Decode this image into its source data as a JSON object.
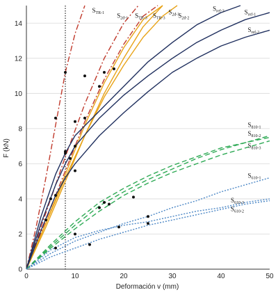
{
  "chart_data": {
    "type": "line",
    "xlabel": "Deformación v (mm)",
    "ylabel": "F (kN)",
    "xlim": [
      0,
      50
    ],
    "ylim": [
      0,
      15
    ],
    "xticks": [
      "0",
      "10",
      "20",
      "30",
      "40",
      "50"
    ],
    "yticks": [
      "0",
      "2",
      "4",
      "6",
      "8",
      "10",
      "12",
      "14"
    ],
    "grid": "horizontal",
    "reference_line": {
      "x": 8,
      "style": "dotted"
    },
    "series": [
      {
        "name": "S_TR-1",
        "color": "#c0392b",
        "dash": "8,3,2,3",
        "x": [
          0,
          2,
          4,
          6,
          8,
          10,
          12
        ],
        "y": [
          0,
          2.4,
          5.2,
          8.2,
          11.2,
          13.4,
          15.0
        ],
        "markers": [
          [
            6,
            8.6
          ],
          [
            8,
            11.2
          ]
        ]
      },
      {
        "name": "S_TR-3",
        "color": "#c0392b",
        "dash": "8,3,2,3",
        "x": [
          0,
          4,
          8,
          12,
          16,
          20,
          23
        ],
        "y": [
          0,
          3.2,
          6.4,
          9.4,
          12.0,
          14.0,
          15.0
        ],
        "markers": [
          [
            5,
            4.0
          ],
          [
            8,
            6.6
          ],
          [
            10,
            8.4
          ]
        ]
      },
      {
        "name": "S_TR-2",
        "color": "#c0392b",
        "dash": "8,3,2,3",
        "x": [
          0,
          4,
          8,
          12,
          16,
          20,
          24,
          27
        ],
        "y": [
          0,
          2.8,
          5.6,
          8.4,
          10.8,
          12.8,
          14.4,
          15.0
        ],
        "markers": [
          [
            4,
            2.8
          ],
          [
            6,
            4.2
          ]
        ]
      },
      {
        "name": "S_2d-1",
        "color": "#e8a317",
        "dash": "",
        "x": [
          0,
          4,
          8,
          12,
          16,
          20,
          24,
          28
        ],
        "y": [
          0,
          2.6,
          5.4,
          8.2,
          10.6,
          12.6,
          14.2,
          15.0
        ],
        "markers": [
          [
            10,
            7.0
          ],
          [
            12,
            11.0
          ],
          [
            16,
            11.2
          ]
        ]
      },
      {
        "name": "S_2d-3",
        "color": "#e8a317",
        "dash": "",
        "x": [
          0,
          4,
          8,
          12,
          16,
          20,
          24,
          28,
          31
        ],
        "y": [
          0,
          2.6,
          5.2,
          7.6,
          9.8,
          11.6,
          13.2,
          14.4,
          15.0
        ],
        "markers": [
          [
            15,
            10.4
          ],
          [
            18,
            11.4
          ]
        ]
      },
      {
        "name": "S_2d-2",
        "color": "#e8a317",
        "dash": "",
        "x": [
          0,
          4,
          8,
          12,
          16,
          20,
          24,
          28
        ],
        "y": [
          0,
          2.4,
          5.0,
          7.6,
          10.0,
          12.0,
          13.8,
          15.0
        ],
        "markers": [
          [
            12,
            8.6
          ]
        ]
      },
      {
        "name": "S_ref-3",
        "color": "#1f2f5e",
        "dash": "",
        "x": [
          0,
          3,
          6,
          8,
          10,
          15,
          20,
          25,
          30,
          35,
          40,
          44
        ],
        "y": [
          0,
          3.0,
          5.4,
          6.6,
          7.6,
          9.0,
          10.4,
          11.8,
          12.9,
          13.9,
          14.6,
          15.0
        ],
        "markers": [
          [
            8,
            6.7
          ]
        ]
      },
      {
        "name": "S_ref-1",
        "color": "#1f2f5e",
        "dash": "",
        "x": [
          0,
          3,
          6,
          8,
          10,
          15,
          20,
          25,
          30,
          35,
          40,
          45,
          50
        ],
        "y": [
          0,
          2.6,
          4.8,
          6.0,
          7.0,
          8.6,
          9.9,
          11.0,
          12.0,
          12.9,
          13.6,
          14.2,
          14.6
        ],
        "markers": [
          [
            9,
            6.3
          ]
        ]
      },
      {
        "name": "S_ref-2",
        "color": "#1f2f5e",
        "dash": "",
        "x": [
          0,
          3,
          6,
          8,
          10,
          15,
          20,
          25,
          30,
          35,
          40,
          45,
          50
        ],
        "y": [
          0,
          2.2,
          4.2,
          5.2,
          6.0,
          7.6,
          8.9,
          10.1,
          11.2,
          12.0,
          12.7,
          13.2,
          13.6
        ],
        "markers": [
          [
            10,
            5.6
          ]
        ]
      },
      {
        "name": "S_810-1",
        "color": "#2eaa55",
        "dash": "7,4",
        "x": [
          0,
          5,
          10,
          15,
          20,
          25,
          30,
          35,
          40,
          45,
          50
        ],
        "y": [
          0,
          1.4,
          2.7,
          3.8,
          4.6,
          5.3,
          5.9,
          6.4,
          6.9,
          7.2,
          7.6
        ],
        "markers": [
          [
            16,
            3.8
          ],
          [
            22,
            4.1
          ]
        ]
      },
      {
        "name": "S_810-2",
        "color": "#2eaa55",
        "dash": "7,4",
        "x": [
          0,
          5,
          10,
          15,
          20,
          25,
          30,
          35,
          40,
          45,
          50
        ],
        "y": [
          0,
          1.3,
          2.5,
          3.6,
          4.4,
          5.1,
          5.7,
          6.3,
          6.8,
          7.2,
          7.5
        ],
        "markers": [
          [
            17,
            3.7
          ]
        ]
      },
      {
        "name": "S_810-3",
        "color": "#2eaa55",
        "dash": "7,4",
        "x": [
          0,
          5,
          10,
          15,
          20,
          25,
          30,
          35,
          40,
          45,
          50
        ],
        "y": [
          0,
          1.2,
          2.3,
          3.3,
          4.2,
          4.9,
          5.5,
          6.0,
          6.5,
          6.9,
          7.3
        ],
        "markers": [
          [
            15,
            3.5
          ]
        ]
      },
      {
        "name": "S_610-1",
        "color": "#4a86c5",
        "dash": "2,2",
        "x": [
          0,
          5,
          10,
          15,
          20,
          25,
          30,
          35,
          40,
          45,
          50
        ],
        "y": [
          0,
          0.9,
          1.6,
          2.1,
          2.6,
          3.0,
          3.5,
          3.9,
          4.4,
          4.8,
          5.2
        ],
        "markers": [
          [
            25,
            3.0
          ]
        ]
      },
      {
        "name": "S_610-3",
        "color": "#4a86c5",
        "dash": "2,2",
        "x": [
          0,
          5,
          10,
          15,
          20,
          25,
          30,
          35,
          40,
          45,
          50
        ],
        "y": [
          0,
          1.1,
          1.8,
          2.2,
          2.5,
          2.7,
          3.0,
          3.3,
          3.5,
          3.8,
          4.0
        ],
        "markers": [
          [
            10,
            2.0
          ],
          [
            19,
            2.4
          ]
        ]
      },
      {
        "name": "S_610-2",
        "color": "#4a86c5",
        "dash": "2,2",
        "x": [
          0,
          5,
          10,
          15,
          20,
          25,
          30,
          35,
          40,
          45,
          50
        ],
        "y": [
          0,
          0.7,
          1.2,
          1.7,
          2.1,
          2.5,
          2.8,
          3.1,
          3.4,
          3.7,
          3.9
        ],
        "markers": [
          [
            6,
            1.2
          ],
          [
            13,
            1.4
          ],
          [
            25,
            2.6
          ]
        ]
      }
    ],
    "series_labels": [
      {
        "series": "S_TR-1",
        "base": "S",
        "sub": "TR-1",
        "at": [
          13.5,
          14.6
        ]
      },
      {
        "series": "S_2d-1",
        "base": "S",
        "sub": "2d-1",
        "at": [
          18.6,
          14.3
        ]
      },
      {
        "series": "S_TR-3",
        "base": "S",
        "sub": "TR-3",
        "at": [
          22.3,
          14.3
        ]
      },
      {
        "series": "S_TR-3",
        "base": "S",
        "sub": "TR-3",
        "at": [
          26.0,
          14.3
        ]
      },
      {
        "series": "S_2d-3",
        "base": "S",
        "sub": "2d-3",
        "at": [
          29.2,
          14.5
        ]
      },
      {
        "series": "S_2d-2",
        "base": "S",
        "sub": "2d-2",
        "at": [
          31.2,
          14.3
        ]
      },
      {
        "series": "S_ref-3",
        "base": "S",
        "sub": "ref-3",
        "at": [
          38.3,
          14.7
        ]
      },
      {
        "series": "S_ref-1",
        "base": "S",
        "sub": "ref-1",
        "at": [
          44.8,
          14.5
        ]
      },
      {
        "series": "S_ref-2",
        "base": "S",
        "sub": "ref-2",
        "at": [
          45.5,
          13.5
        ]
      },
      {
        "series": "S_810-1",
        "base": "S",
        "sub": "810-1",
        "at": [
          45.5,
          8.1
        ]
      },
      {
        "series": "S_810-2",
        "base": "S",
        "sub": "810-2",
        "at": [
          45.5,
          7.6
        ]
      },
      {
        "series": "S_810-3",
        "base": "S",
        "sub": "810-3",
        "at": [
          45.5,
          6.9
        ]
      },
      {
        "series": "S_610-1",
        "base": "S",
        "sub": "610-1",
        "at": [
          45.5,
          5.2
        ]
      },
      {
        "series": "S_610-3",
        "base": "S",
        "sub": "610-3",
        "at": [
          42.0,
          3.8
        ]
      },
      {
        "series": "S_610-2",
        "base": "S",
        "sub": "610-2",
        "at": [
          42.0,
          3.3
        ]
      }
    ]
  }
}
